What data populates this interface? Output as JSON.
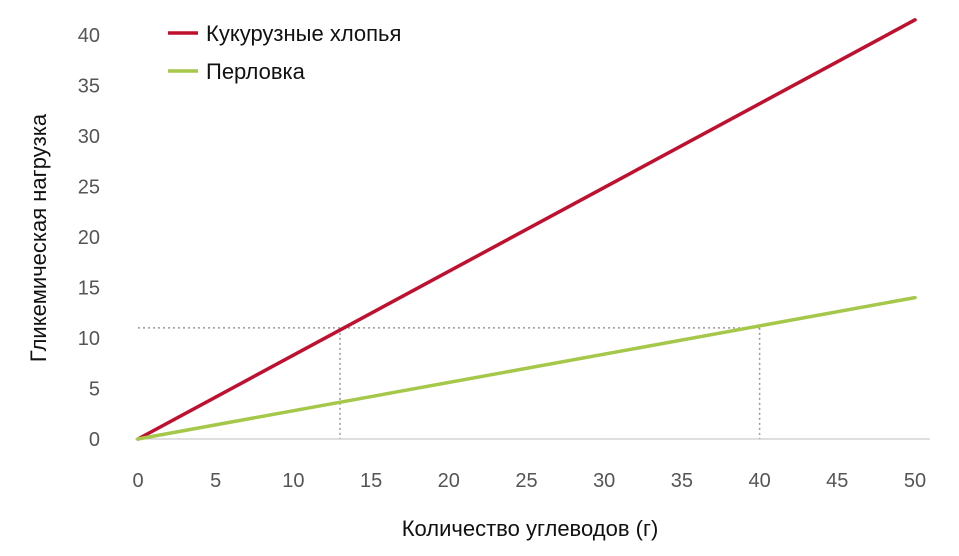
{
  "chart_data": {
    "type": "line",
    "xlabel": "Количество углеводов (г)",
    "ylabel": "Гликемическая нагрузка",
    "xlim": [
      0,
      50
    ],
    "ylim": [
      0,
      40
    ],
    "x_ticks": [
      "0",
      "5",
      "10",
      "15",
      "20",
      "25",
      "30",
      "35",
      "40",
      "45",
      "50"
    ],
    "y_ticks": [
      "0",
      "5",
      "10",
      "15",
      "20",
      "25",
      "30",
      "35",
      "40"
    ],
    "grid": false,
    "legend_position": "top-left",
    "series": [
      {
        "name": "Кукурузные хлопья",
        "color": "#c0102f",
        "x": [
          0,
          50
        ],
        "y": [
          0,
          41.5
        ]
      },
      {
        "name": "Перловка",
        "color": "#a6c84a",
        "x": [
          0,
          50
        ],
        "y": [
          0,
          14
        ]
      }
    ],
    "reference_lines": {
      "y_value": 11,
      "x_values": [
        13,
        40
      ],
      "style": "dotted",
      "color": "#999999"
    }
  }
}
